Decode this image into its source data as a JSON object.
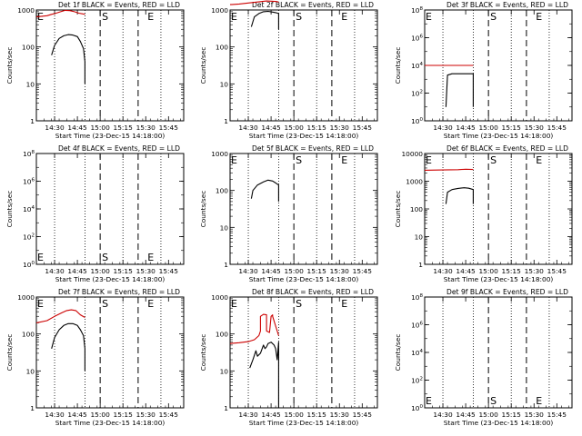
{
  "figure": {
    "xticks": [
      "14:30",
      "14:45",
      "15:00",
      "15:15",
      "15:30",
      "15:45"
    ],
    "xlabel": "Start Time (23-Dec-15 14:18:00)",
    "ylabel": "Counts/sec",
    "markers": [
      "E",
      "S",
      "E"
    ]
  },
  "chart_data": [
    {
      "type": "line",
      "title": "Det 1f BLACK = Events, RED = LLD",
      "yscale": "log",
      "ylim": [
        1,
        1000
      ],
      "yticks": [
        "1",
        "10",
        "100",
        "1000"
      ],
      "xlim": [
        "14:18",
        "15:55"
      ],
      "series": [
        {
          "color": "#000000",
          "x": [
            "14:28",
            "14:30",
            "14:33",
            "14:36",
            "14:39",
            "14:42",
            "14:45",
            "14:47",
            "14:49",
            "14:50",
            "14:50"
          ],
          "y": [
            60,
            110,
            170,
            200,
            215,
            210,
            190,
            140,
            90,
            40,
            10
          ]
        },
        {
          "color": "#cc0000",
          "x": [
            "14:18",
            "14:25",
            "14:28",
            "14:31",
            "14:34",
            "14:37",
            "14:40",
            "14:43",
            "14:46",
            "14:49",
            "14:50"
          ],
          "y": [
            650,
            700,
            760,
            820,
            900,
            980,
            960,
            900,
            820,
            780,
            760
          ]
        }
      ]
    },
    {
      "type": "line",
      "title": "Det 2f BLACK = Events, RED = LLD",
      "yscale": "log",
      "ylim": [
        1,
        1000
      ],
      "yticks": [
        "1",
        "10",
        "100",
        "1000"
      ],
      "xlim": [
        "14:18",
        "15:55"
      ],
      "series": [
        {
          "color": "#000000",
          "x": [
            "14:32",
            "14:34",
            "14:37",
            "14:40",
            "14:43",
            "14:46",
            "14:48",
            "14:50",
            "14:50"
          ],
          "y": [
            350,
            650,
            800,
            900,
            920,
            880,
            850,
            800,
            300
          ]
        },
        {
          "color": "#cc0000",
          "x": [
            "14:18",
            "14:24",
            "14:30",
            "14:36",
            "14:42",
            "14:48",
            "14:50"
          ],
          "y": [
            1400,
            1450,
            1550,
            1650,
            1750,
            1700,
            1650
          ]
        }
      ]
    },
    {
      "type": "line",
      "title": "Det 3f BLACK = Events, RED = LLD",
      "yscale": "log",
      "ylim": [
        1,
        100000000
      ],
      "yticks": [
        "10^0",
        "10^2",
        "10^4",
        "10^6",
        "10^8"
      ],
      "xlim": [
        "14:18",
        "15:55"
      ],
      "series": [
        {
          "color": "#000000",
          "x": [
            "14:32",
            "14:33",
            "14:36",
            "14:40",
            "14:44",
            "14:48",
            "14:50",
            "14:50"
          ],
          "y": [
            10,
            2000,
            2500,
            2500,
            2500,
            2500,
            2500,
            10
          ]
        },
        {
          "color": "#cc0000",
          "x": [
            "14:18",
            "14:30",
            "14:40",
            "14:50"
          ],
          "y": [
            10000,
            10000,
            10000,
            10000
          ]
        }
      ]
    },
    {
      "type": "line",
      "title": "Det 4f BLACK = Events, RED = LLD",
      "yscale": "log",
      "ylim": [
        1,
        100000000
      ],
      "yticks": [
        "10^0",
        "10^2",
        "10^4",
        "10^6",
        "10^8"
      ],
      "xlim": [
        "14:18",
        "15:55"
      ],
      "series": []
    },
    {
      "type": "line",
      "title": "Det 5f BLACK = Events, RED = LLD",
      "yscale": "log",
      "ylim": [
        1,
        1000
      ],
      "yticks": [
        "1",
        "10",
        "100",
        "1000"
      ],
      "xlim": [
        "14:18",
        "15:55"
      ],
      "series": [
        {
          "color": "#000000",
          "x": [
            "14:32",
            "14:33",
            "14:36",
            "14:40",
            "14:43",
            "14:46",
            "14:48",
            "14:50",
            "14:50"
          ],
          "y": [
            60,
            100,
            140,
            170,
            190,
            180,
            160,
            140,
            50
          ]
        }
      ]
    },
    {
      "type": "line",
      "title": "Det 6f BLACK = Events, RED = LLD",
      "yscale": "log",
      "ylim": [
        1,
        10000
      ],
      "yticks": [
        "1",
        "10",
        "100",
        "1000",
        "10000"
      ],
      "xlim": [
        "14:18",
        "15:55"
      ],
      "series": [
        {
          "color": "#000000",
          "x": [
            "14:32",
            "14:33",
            "14:36",
            "14:40",
            "14:44",
            "14:47",
            "14:50",
            "14:50"
          ],
          "y": [
            150,
            400,
            500,
            550,
            580,
            560,
            500,
            150
          ]
        },
        {
          "color": "#cc0000",
          "x": [
            "14:18",
            "14:30",
            "14:40",
            "14:45",
            "14:50"
          ],
          "y": [
            2500,
            2550,
            2600,
            2700,
            2650
          ]
        }
      ]
    },
    {
      "type": "line",
      "title": "Det 7f BLACK = Events, RED = LLD",
      "yscale": "log",
      "ylim": [
        1,
        1000
      ],
      "yticks": [
        "1",
        "10",
        "100",
        "1000"
      ],
      "xlim": [
        "14:18",
        "15:55"
      ],
      "series": [
        {
          "color": "#000000",
          "x": [
            "14:28",
            "14:30",
            "14:33",
            "14:36",
            "14:39",
            "14:42",
            "14:45",
            "14:47",
            "14:49",
            "14:50",
            "14:50"
          ],
          "y": [
            40,
            80,
            130,
            170,
            190,
            190,
            170,
            130,
            90,
            40,
            10
          ]
        },
        {
          "color": "#cc0000",
          "x": [
            "14:18",
            "14:25",
            "14:30",
            "14:35",
            "14:38",
            "14:41",
            "14:44",
            "14:47",
            "14:50"
          ],
          "y": [
            200,
            230,
            300,
            380,
            430,
            450,
            430,
            330,
            280
          ]
        }
      ]
    },
    {
      "type": "line",
      "title": "Det 8f BLACK = Events, RED = LLD",
      "yscale": "log",
      "ylim": [
        1,
        1000
      ],
      "yticks": [
        "1",
        "10",
        "100",
        "1000"
      ],
      "xlim": [
        "14:18",
        "15:55"
      ],
      "series": [
        {
          "color": "#000000",
          "x": [
            "14:31",
            "14:33",
            "14:35",
            "14:36",
            "14:38",
            "14:40",
            "14:41",
            "14:42",
            "14:43",
            "14:45",
            "14:47",
            "14:48",
            "14:49",
            "14:50",
            "14:50"
          ],
          "y": [
            12,
            20,
            35,
            25,
            30,
            50,
            40,
            45,
            55,
            60,
            50,
            40,
            20,
            60,
            1
          ]
        },
        {
          "color": "#cc0000",
          "x": [
            "14:18",
            "14:24",
            "14:30",
            "14:34",
            "14:37",
            "14:38",
            "14:38",
            "14:40",
            "14:42",
            "14:42",
            "14:44",
            "14:45",
            "14:46",
            "14:46",
            "14:50"
          ],
          "y": [
            55,
            58,
            62,
            70,
            90,
            120,
            300,
            340,
            330,
            120,
            110,
            300,
            330,
            300,
            90
          ]
        }
      ]
    },
    {
      "type": "line",
      "title": "Det 9f BLACK = Events, RED = LLD",
      "yscale": "log",
      "ylim": [
        1,
        100000000
      ],
      "yticks": [
        "10^0",
        "10^2",
        "10^4",
        "10^6",
        "10^8"
      ],
      "xlim": [
        "14:18",
        "15:55"
      ],
      "series": []
    }
  ]
}
